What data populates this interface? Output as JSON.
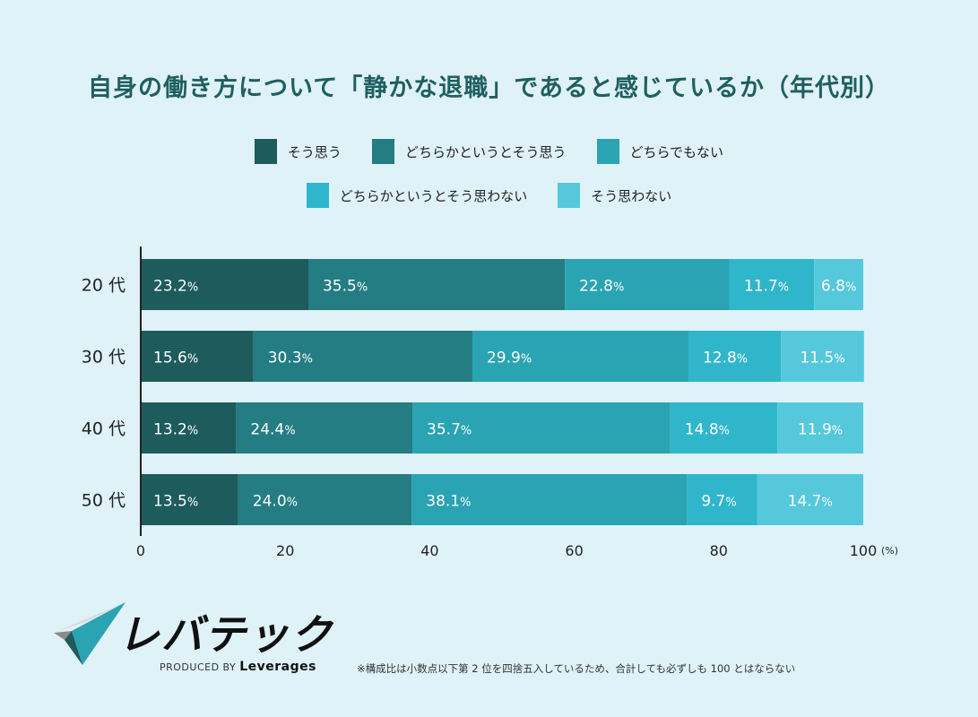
{
  "title": "自身の働き方について「静かな退職」であると感じているか（年代別）",
  "chart_data": {
    "type": "bar",
    "orientation": "horizontal",
    "stacked": true,
    "categories": [
      "20 代",
      "30 代",
      "40 代",
      "50 代"
    ],
    "series": [
      {
        "name": "そう思う",
        "color": "#1d5b5c",
        "values": [
          23.2,
          15.6,
          13.2,
          13.5
        ]
      },
      {
        "name": "どちらかというとそう思う",
        "color": "#237d82",
        "values": [
          35.5,
          30.3,
          24.4,
          24.0
        ]
      },
      {
        "name": "どちらでもない",
        "color": "#2aa3b2",
        "values": [
          22.8,
          29.9,
          35.7,
          38.1
        ]
      },
      {
        "name": "どちらかというとそう思わない",
        "color": "#2fb6cb",
        "values": [
          11.7,
          12.8,
          14.8,
          9.7
        ]
      },
      {
        "name": "そう思わない",
        "color": "#56c8db",
        "values": [
          6.8,
          11.5,
          11.9,
          14.7
        ]
      }
    ],
    "xlim": [
      0,
      100
    ],
    "xticks": [
      "0",
      "20",
      "40",
      "60",
      "80",
      "100"
    ],
    "xunit": "(%)",
    "legend": "top",
    "grid": false
  },
  "footer": {
    "brand": "レバテック",
    "produced_by": "PRODUCED BY",
    "company": "Leverages",
    "note": "※構成比は小数点以下第 2 位を四捨五入しているため、合計しても必ずしも 100 とはならない"
  }
}
